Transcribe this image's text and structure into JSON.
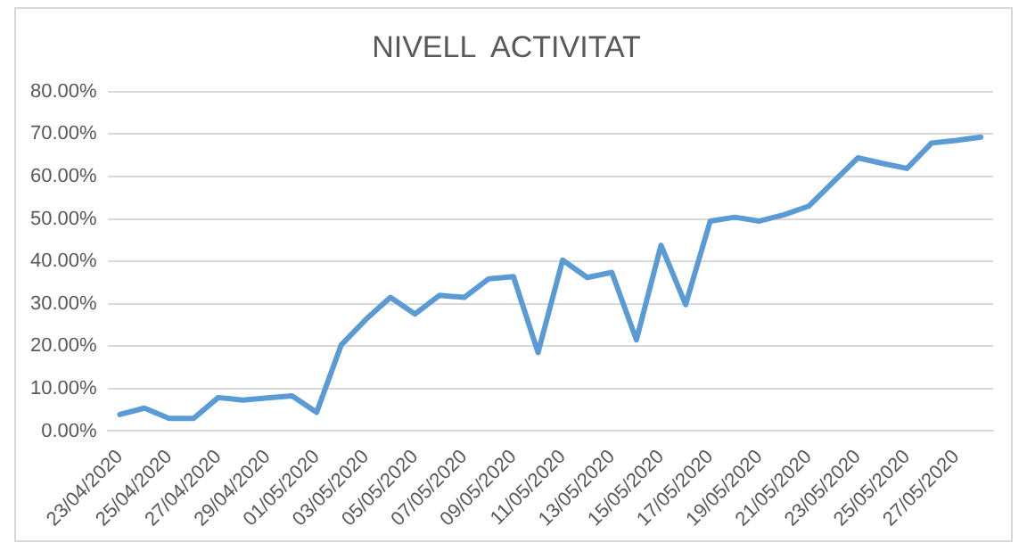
{
  "chart_data": {
    "type": "line",
    "title": "NIVELL  ACTIVITAT",
    "categories": [
      "23/04/2020",
      null,
      "25/04/2020",
      null,
      "27/04/2020",
      null,
      "29/04/2020",
      null,
      "01/05/2020",
      null,
      "03/05/2020",
      null,
      "05/05/2020",
      null,
      "07/05/2020",
      null,
      "09/05/2020",
      null,
      "11/05/2020",
      null,
      "13/05/2020",
      null,
      "15/05/2020",
      null,
      "17/05/2020",
      null,
      "19/05/2020",
      null,
      "21/05/2020",
      null,
      "23/05/2020",
      null,
      "25/05/2020",
      null,
      "27/05/2020",
      null
    ],
    "series": [
      {
        "color": "#5b9bd5",
        "values": [
          3.9,
          5.4,
          3.0,
          3.0,
          7.9,
          7.3,
          7.8,
          8.3,
          4.4,
          20.3,
          26.3,
          31.5,
          27.6,
          32.0,
          31.5,
          35.9,
          36.4,
          18.5,
          40.3,
          36.2,
          37.4,
          21.5,
          43.8,
          29.8,
          49.5,
          50.4,
          49.5,
          51.0,
          53.0,
          58.7,
          64.4,
          63.1,
          61.9,
          67.9,
          68.5,
          69.3
        ]
      }
    ],
    "ylim": [
      0,
      80
    ],
    "yticks": [
      {
        "value": 0,
        "label": "0.00%"
      },
      {
        "value": 10,
        "label": "10.00%"
      },
      {
        "value": 20,
        "label": "20.00%"
      },
      {
        "value": 30,
        "label": "30.00%"
      },
      {
        "value": 40,
        "label": "40.00%"
      },
      {
        "value": 50,
        "label": "50.00%"
      },
      {
        "value": 60,
        "label": "60.00%"
      },
      {
        "value": 70,
        "label": "70.00%"
      },
      {
        "value": 80,
        "label": "80.00%"
      }
    ],
    "grid": "y",
    "legend": false,
    "marker": "none",
    "line_style": "solid"
  }
}
